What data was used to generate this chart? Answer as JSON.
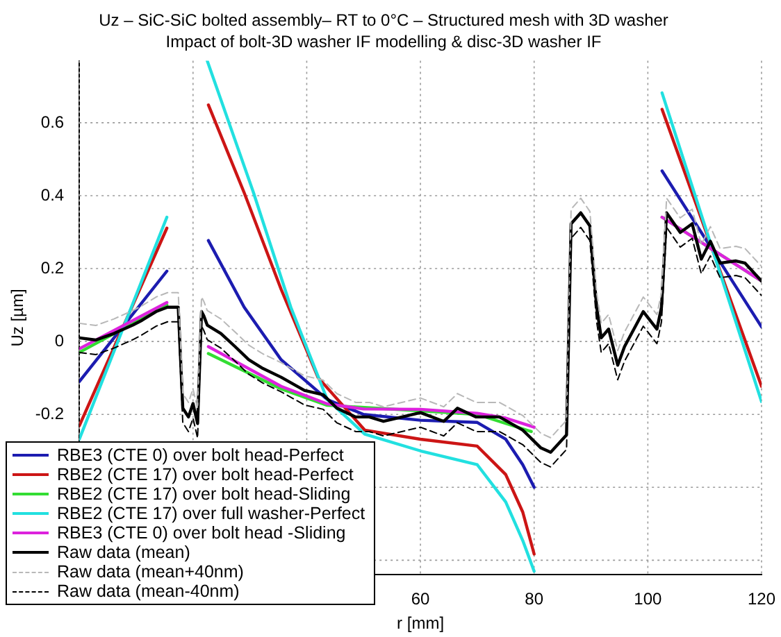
{
  "chart_data": {
    "type": "line",
    "title": "Uz – SiC-SiC bolted assembly– RT to 0°C – Structured mesh with 3D washer",
    "subtitle": "Impact of bolt-3D washer IF modelling & disc-3D washer IF",
    "xlabel": "r [mm]",
    "ylabel": "Uz [µm]",
    "xlim": [
      0,
      120
    ],
    "xticks": [
      {
        "value": 0,
        "label": null
      },
      {
        "value": 20,
        "label": null
      },
      {
        "value": 40,
        "label": null
      },
      60,
      80,
      100,
      120
    ],
    "ylim": [
      -0.64,
      0.77
    ],
    "yticks": [
      {
        "value": -0.6,
        "label": null
      },
      {
        "value": -0.4,
        "label": null
      },
      -0.2,
      0,
      0.2,
      0.4,
      0.6
    ],
    "grid": true,
    "legend": "bottom left",
    "series": [
      {
        "name": "RBE3 (CTE  0) over bolt head-Perfect",
        "color": "#1c1cb0",
        "x": [
          0,
          15.4,
          19,
          22.7,
          29,
          35.5,
          43.6,
          50,
          60,
          70,
          75,
          78,
          80,
          91,
          102.5,
          120
        ],
        "values": [
          -0.11,
          0.193,
          null,
          0.277,
          0.094,
          -0.05,
          -0.159,
          -0.2,
          -0.216,
          -0.222,
          -0.268,
          -0.338,
          -0.4,
          null,
          0.468,
          0.04
        ]
      },
      {
        "name": "RBE2 (CTE 17) over bolt head-Perfect",
        "color": "#cc1515",
        "x": [
          0,
          15.4,
          19,
          22.7,
          29,
          35.5,
          42,
          50.2,
          60,
          70,
          75,
          78,
          80,
          91,
          102.5,
          120
        ],
        "values": [
          -0.231,
          0.311,
          null,
          0.649,
          0.408,
          0.143,
          -0.099,
          -0.243,
          -0.268,
          -0.287,
          -0.365,
          -0.468,
          -0.583,
          null,
          0.637,
          -0.123
        ]
      },
      {
        "name": "RBE2 (CTE 17) over bolt head-Sliding",
        "color": "#33dd33",
        "x": [
          0,
          15.4,
          19,
          22.7,
          35.5,
          43.6,
          60,
          70,
          79.5,
          91,
          102.5,
          120
        ],
        "values": [
          -0.03,
          0.1,
          null,
          -0.033,
          -0.13,
          -0.175,
          -0.19,
          -0.2,
          -0.247,
          null,
          0.341,
          0.166
        ]
      },
      {
        "name": "RBE2 (CTE 17) over full washer-Perfect",
        "color": "#22e0e0",
        "x": [
          0,
          15.4,
          19,
          22.5,
          30.6,
          37.2,
          43.6,
          50.2,
          60,
          70,
          75,
          78,
          80,
          91,
          102.5,
          120
        ],
        "values": [
          -0.268,
          0.341,
          null,
          0.77,
          0.41,
          0.094,
          -0.159,
          -0.254,
          -0.3,
          -0.338,
          -0.44,
          -0.546,
          -0.63,
          null,
          0.682,
          -0.165
        ]
      },
      {
        "name": "RBE3 (CTE  0) over bolt head -Sliding",
        "color": "#dd22dd",
        "x": [
          0,
          15.4,
          19,
          22.7,
          35.5,
          43.6,
          50,
          60,
          70,
          75,
          80,
          91,
          102.5,
          120
        ],
        "values": [
          -0.02,
          0.107,
          null,
          -0.014,
          -0.123,
          -0.171,
          -0.185,
          -0.186,
          -0.197,
          -0.21,
          -0.235,
          null,
          0.341,
          0.166
        ]
      },
      {
        "name": "Raw data (mean)",
        "color": "#000000",
        "x": [
          0,
          2.9,
          6.1,
          9.4,
          11,
          13.5,
          15.5,
          17.4,
          18.2,
          19.2,
          20,
          20.8,
          21.5,
          21.9,
          22.5,
          24.9,
          27.4,
          29.8,
          32.3,
          35.5,
          39.6,
          42.9,
          45.3,
          48.6,
          51,
          53.5,
          55.1,
          60,
          64.1,
          66.5,
          69.8,
          73.9,
          78,
          81.2,
          82.9,
          85.7,
          86.5,
          88.2,
          89.8,
          91,
          91.8,
          93.1,
          94.7,
          95.9,
          99.2,
          101.6,
          102.4,
          103.3,
          105.7,
          107.8,
          109.4,
          111,
          112.7,
          115.5,
          117.1,
          120
        ],
        "values": [
          0.01,
          0.004,
          0.022,
          0.045,
          0.058,
          0.082,
          0.094,
          0.094,
          -0.183,
          -0.207,
          -0.17,
          -0.225,
          0.082,
          0.07,
          0.045,
          0.022,
          -0.014,
          -0.05,
          -0.074,
          -0.098,
          -0.134,
          -0.146,
          -0.183,
          -0.207,
          -0.207,
          -0.219,
          -0.213,
          -0.195,
          -0.219,
          -0.183,
          -0.207,
          -0.207,
          -0.243,
          -0.292,
          -0.304,
          -0.256,
          0.323,
          0.353,
          0.317,
          0.094,
          0.01,
          0.034,
          -0.065,
          -0.014,
          0.082,
          0.034,
          0.094,
          0.353,
          0.299,
          0.323,
          0.226,
          0.275,
          0.215,
          0.221,
          0.215,
          0.166
        ]
      },
      {
        "name": "Raw data (mean+40nm)",
        "color": "#b8b8b8",
        "line_style": "dashed",
        "x": [
          0,
          2.9,
          6.1,
          9.4,
          11,
          13.5,
          15.5,
          17.4,
          18.2,
          19.2,
          20,
          20.8,
          21.5,
          21.9,
          22.5,
          24.9,
          27.4,
          29.8,
          32.3,
          35.5,
          39.6,
          42.9,
          45.3,
          48.6,
          51,
          53.5,
          55.1,
          60,
          64.1,
          66.5,
          69.8,
          73.9,
          78,
          81.2,
          82.9,
          85.7,
          86.5,
          88.2,
          89.8,
          91,
          91.8,
          93.1,
          94.7,
          95.9,
          99.2,
          101.6,
          102.4,
          103.3,
          105.7,
          107.8,
          109.4,
          111,
          112.7,
          115.5,
          117.1,
          120
        ],
        "values": [
          0.05,
          0.044,
          0.062,
          0.085,
          0.098,
          0.122,
          0.134,
          0.134,
          -0.143,
          -0.167,
          -0.13,
          -0.185,
          0.122,
          0.11,
          0.085,
          0.062,
          0.026,
          -0.01,
          -0.034,
          -0.058,
          -0.094,
          -0.106,
          -0.143,
          -0.167,
          -0.167,
          -0.179,
          -0.173,
          -0.155,
          -0.179,
          -0.143,
          -0.167,
          -0.167,
          -0.203,
          -0.252,
          -0.264,
          -0.216,
          0.363,
          0.393,
          0.357,
          0.134,
          0.05,
          0.074,
          -0.025,
          0.026,
          0.122,
          0.074,
          0.134,
          0.393,
          0.339,
          0.363,
          0.266,
          0.315,
          0.255,
          0.261,
          0.255,
          0.206
        ]
      },
      {
        "name": "Raw data (mean-40nm)",
        "color": "#000000",
        "line_style": "dashed",
        "x": [
          0,
          2.9,
          6.1,
          9.4,
          11,
          13.5,
          15.5,
          17.4,
          18.2,
          19.2,
          20,
          20.8,
          21.5,
          21.9,
          22.5,
          24.9,
          27.4,
          29.8,
          32.3,
          35.5,
          39.6,
          42.9,
          45.3,
          48.6,
          51,
          53.5,
          55.1,
          60,
          64.1,
          66.5,
          69.8,
          73.9,
          78,
          81.2,
          82.9,
          85.7,
          86.5,
          88.2,
          89.8,
          91,
          91.8,
          93.1,
          94.7,
          95.9,
          99.2,
          101.6,
          102.4,
          103.3,
          105.7,
          107.8,
          109.4,
          111,
          112.7,
          115.5,
          117.1,
          120
        ],
        "values": [
          -0.03,
          -0.036,
          -0.018,
          0.005,
          0.018,
          0.042,
          0.054,
          0.054,
          -0.223,
          -0.247,
          -0.21,
          -0.265,
          0.042,
          0.03,
          0.005,
          -0.018,
          -0.054,
          -0.09,
          -0.114,
          -0.138,
          -0.174,
          -0.186,
          -0.223,
          -0.247,
          -0.247,
          -0.259,
          -0.253,
          -0.235,
          -0.259,
          -0.223,
          -0.247,
          -0.247,
          -0.283,
          -0.332,
          -0.344,
          -0.296,
          0.283,
          0.313,
          0.277,
          0.054,
          -0.03,
          -0.006,
          -0.105,
          -0.054,
          0.042,
          -0.006,
          0.054,
          0.313,
          0.259,
          0.283,
          0.186,
          0.235,
          0.175,
          0.181,
          0.175,
          0.126
        ]
      }
    ]
  }
}
